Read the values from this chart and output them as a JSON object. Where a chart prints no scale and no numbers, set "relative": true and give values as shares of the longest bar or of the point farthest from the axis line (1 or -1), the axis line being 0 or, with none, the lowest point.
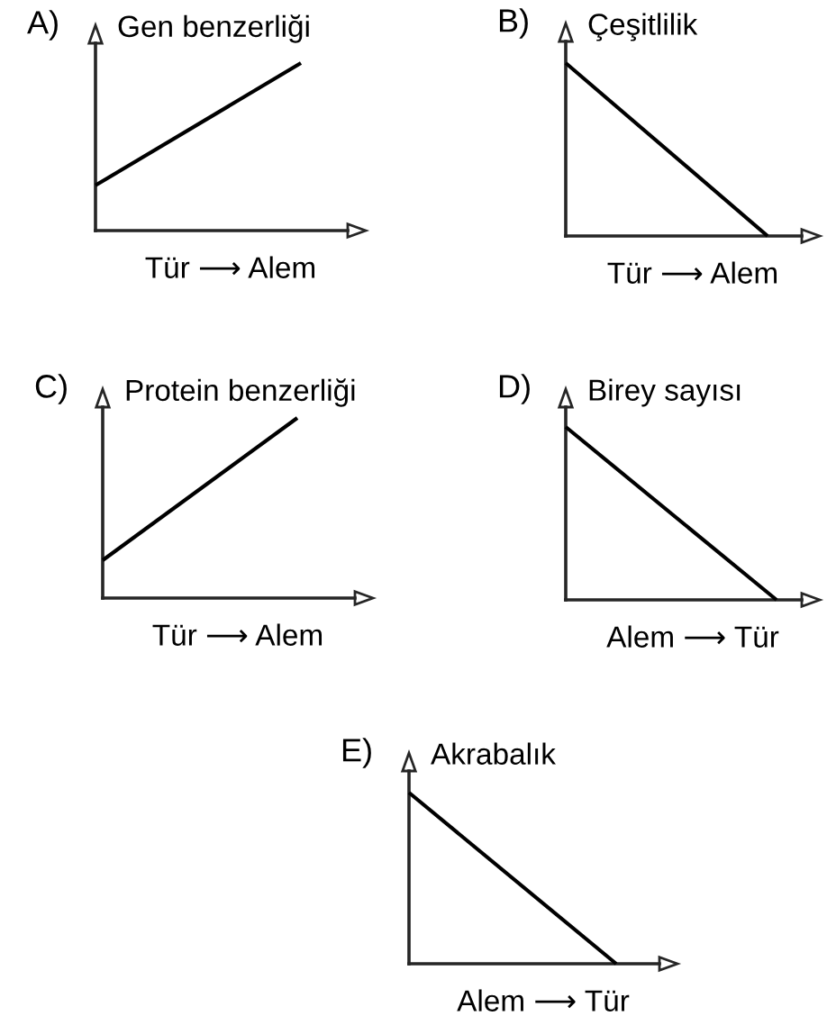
{
  "chart_data": [
    {
      "type": "line",
      "title": "A)",
      "ylabel": "Gen benzerliği",
      "xlabel": "Tür ⟶ Alem",
      "categories": [
        null,
        null
      ],
      "values": [
        0.27,
        1
      ],
      "color": "#000000",
      "relative": true
    },
    {
      "type": "line",
      "title": "B)",
      "ylabel": "Çeşitlilik",
      "xlabel": "Tür ⟶ Alem",
      "categories": [
        null,
        null
      ],
      "values": [
        1,
        0
      ],
      "color": "#000000",
      "relative": true
    },
    {
      "type": "line",
      "title": "C)",
      "ylabel": "Protein benzerliği",
      "xlabel": "Tür ⟶ Alem",
      "categories": [
        null,
        null
      ],
      "values": [
        0.21,
        1
      ],
      "color": "#000000",
      "relative": true
    },
    {
      "type": "line",
      "title": "D)",
      "ylabel": "Birey sayısı",
      "xlabel": "Alem ⟶ Tür",
      "categories": [
        null,
        null
      ],
      "values": [
        1,
        0
      ],
      "color": "#000000",
      "relative": true
    },
    {
      "type": "line",
      "title": "E)",
      "ylabel": "Akrabalık",
      "xlabel": "Alem ⟶ Tür",
      "categories": [
        null,
        null
      ],
      "values": [
        1,
        0
      ],
      "color": "#000000",
      "relative": true
    }
  ]
}
